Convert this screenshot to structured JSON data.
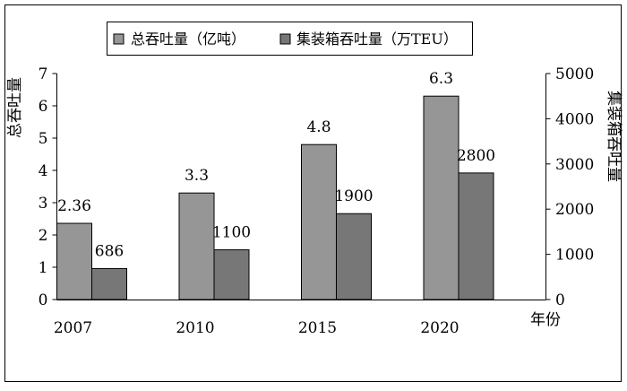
{
  "chart_data": {
    "type": "bar",
    "categories": [
      "2007",
      "2010",
      "2015",
      "2020"
    ],
    "series": [
      {
        "name": "总吞吐量（亿吨）",
        "axis": "left",
        "color": "#969696",
        "values": [
          2.36,
          3.3,
          4.8,
          6.3
        ],
        "labels": [
          "2.36",
          "3.3",
          "4.8",
          "6.3"
        ]
      },
      {
        "name": "集装箱吞吐量（万TEU）",
        "axis": "right",
        "color": "#777777",
        "values": [
          686,
          1100,
          1900,
          2800
        ],
        "labels": [
          "686",
          "1100",
          "1900",
          "2800"
        ]
      }
    ],
    "ylabel": "总吞吐量",
    "y2label": "集装箱吞吐量",
    "xlabel": "年份",
    "ylim": [
      0,
      7
    ],
    "y2lim": [
      0,
      5000
    ],
    "yticks": [
      "0",
      "1",
      "2",
      "3",
      "4",
      "5",
      "6",
      "7"
    ],
    "y2ticks": [
      "0",
      "1000",
      "2000",
      "3000",
      "4000",
      "5000"
    ],
    "legend_position": "top",
    "grid": false
  }
}
